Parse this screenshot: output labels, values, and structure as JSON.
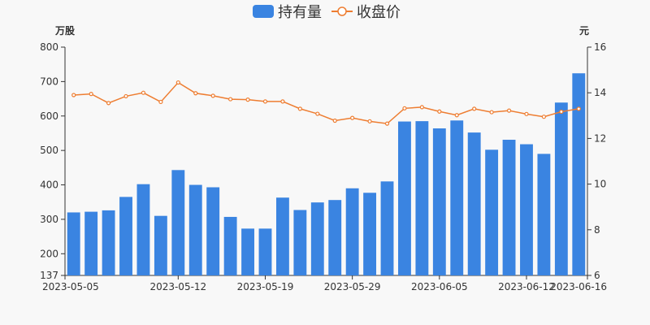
{
  "chart_data": {
    "type": "bar+line",
    "legend": {
      "placement": "top-center",
      "items": [
        {
          "label": "持有量",
          "symbol": "rounded-rect",
          "color": "#3a84e1"
        },
        {
          "label": "收盘价",
          "symbol": "line-circle",
          "color": "#ee7d31"
        }
      ]
    },
    "left_axis": {
      "unit": "万股",
      "ylim": [
        137,
        800
      ],
      "ticks": [
        "137",
        "200",
        "300",
        "400",
        "500",
        "600",
        "700",
        "800"
      ],
      "tick_values": [
        137,
        200,
        300,
        400,
        500,
        600,
        700,
        800
      ]
    },
    "right_axis": {
      "unit": "元",
      "ylim": [
        6,
        16
      ],
      "ticks": [
        "6",
        "8",
        "10",
        "12",
        "14",
        "16"
      ],
      "tick_values": [
        6,
        8,
        10,
        12,
        14,
        16
      ]
    },
    "x_tick_labels": [
      {
        "label": "2023-05-05",
        "index": 0
      },
      {
        "label": "2023-05-12",
        "index": 6
      },
      {
        "label": "2023-05-19",
        "index": 11
      },
      {
        "label": "2023-05-29",
        "index": 16
      },
      {
        "label": "2023-06-05",
        "index": 21
      },
      {
        "label": "2023-06-12",
        "index": 26
      },
      {
        "label": "2023-06-16",
        "index": 29
      }
    ],
    "series": [
      {
        "name": "持有量",
        "type": "bar",
        "axis": "left",
        "color": "#3a84e1",
        "values": [
          320,
          322,
          326,
          365,
          402,
          310,
          443,
          400,
          393,
          307,
          273,
          273,
          363,
          327,
          349,
          356,
          390,
          377,
          410,
          584,
          585,
          564,
          587,
          552,
          502,
          531,
          518,
          490,
          639,
          724
        ]
      },
      {
        "name": "收盘价",
        "type": "line",
        "axis": "right",
        "color": "#ee7d31",
        "values": [
          13.9,
          13.95,
          13.55,
          13.85,
          14.0,
          13.6,
          14.45,
          13.98,
          13.87,
          13.72,
          13.7,
          13.62,
          13.62,
          13.3,
          13.08,
          12.78,
          12.9,
          12.75,
          12.65,
          13.32,
          13.37,
          13.18,
          13.02,
          13.3,
          13.15,
          13.22,
          13.07,
          12.95,
          13.17,
          13.3
        ]
      }
    ]
  }
}
